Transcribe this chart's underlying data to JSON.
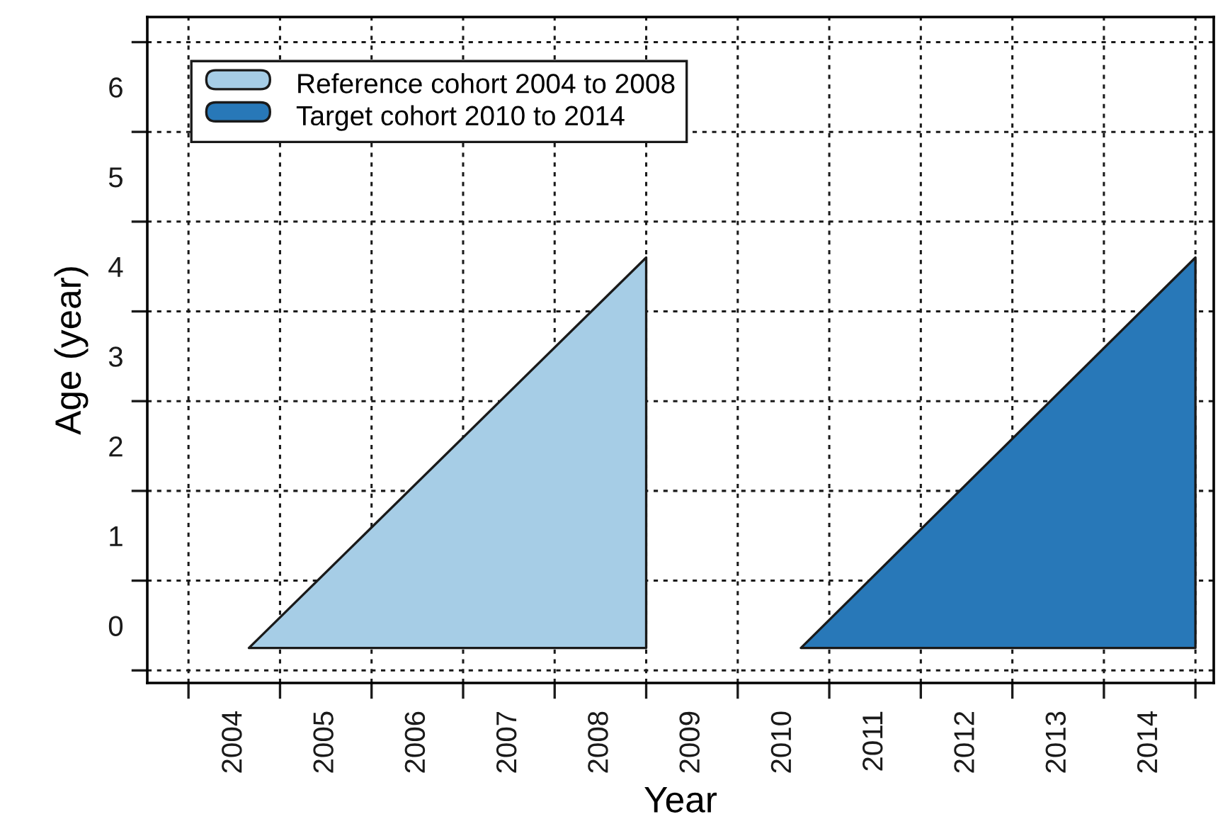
{
  "chart_data": {
    "type": "area",
    "xlabel": "Year",
    "ylabel": "Age (year)",
    "series": [
      {
        "name": "Reference cohort 2004 to 2008",
        "color": "#a6cde6",
        "x": [
          2004.16,
          2008.5,
          2008.5
        ],
        "values": [
          -0.25,
          -0.25,
          4.1
        ]
      },
      {
        "name": "Target cohort 2010 to 2014",
        "color": "#2878b8",
        "x": [
          2010.19,
          2014.5,
          2014.5
        ],
        "values": [
          -0.25,
          -0.25,
          4.1
        ]
      }
    ],
    "xlim": [
      2003.05,
      2014.7
    ],
    "ylim": [
      -0.64,
      6.78
    ],
    "xticks": [
      {
        "value": 2003.5,
        "label": null
      },
      {
        "value": 2004.5,
        "label": null
      },
      {
        "value": 2005.5,
        "label": null
      },
      {
        "value": 2006.5,
        "label": null
      },
      {
        "value": 2007.5,
        "label": null
      },
      {
        "value": 2008.5,
        "label": null
      },
      {
        "value": 2009.5,
        "label": null
      },
      {
        "value": 2010.5,
        "label": null
      },
      {
        "value": 2011.5,
        "label": null
      },
      {
        "value": 2012.5,
        "label": null
      },
      {
        "value": 2013.5,
        "label": null
      },
      {
        "value": 2014.5,
        "label": null
      },
      2004,
      2005,
      2006,
      2007,
      2008,
      2009,
      2010,
      2011,
      2012,
      2013,
      2014
    ],
    "yticks": [
      {
        "value": -0.5,
        "label": null
      },
      {
        "value": 0.5,
        "label": null
      },
      {
        "value": 1.5,
        "label": null
      },
      {
        "value": 2.5,
        "label": null
      },
      {
        "value": 3.5,
        "label": null
      },
      {
        "value": 4.5,
        "label": null
      },
      {
        "value": 5.5,
        "label": null
      },
      {
        "value": 6.5,
        "label": null
      },
      0,
      1,
      2,
      3,
      4,
      5,
      6
    ],
    "grid": true,
    "legend": "top left"
  }
}
